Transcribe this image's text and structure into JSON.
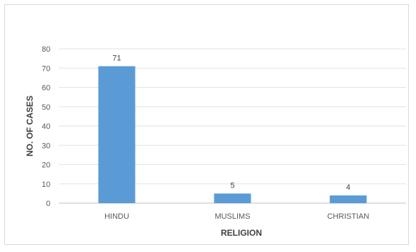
{
  "chart_data": {
    "type": "bar",
    "categories": [
      "HINDU",
      "MUSLIMS",
      "CHRISTIAN"
    ],
    "values": [
      71,
      5,
      4
    ],
    "data_labels": [
      "71",
      "5",
      "4"
    ],
    "title": "",
    "xlabel": "RELIGION",
    "ylabel": "NO. OF CASES",
    "ylim": [
      0,
      80
    ],
    "yticks": [
      "0",
      "10",
      "20",
      "30",
      "40",
      "50",
      "60",
      "70",
      "80"
    ],
    "grid": true,
    "legend": "none",
    "bar_color": "#5b9bd5"
  }
}
